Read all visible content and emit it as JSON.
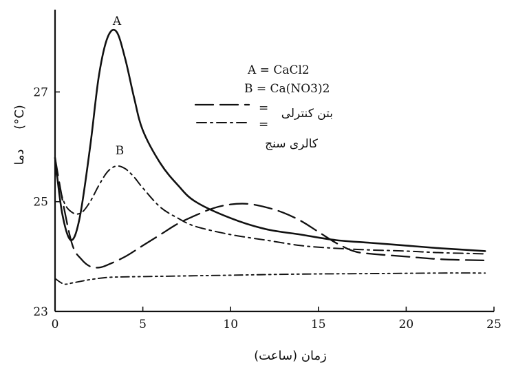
{
  "chart_data": {
    "type": "line",
    "title": "",
    "xlabel": "زمان (ساعت)",
    "ylabel": "دما",
    "ylabel_unit": "(°C)",
    "xlim": [
      0,
      25
    ],
    "ylim": [
      23,
      28.5
    ],
    "xticks": [
      0,
      5,
      10,
      15,
      20,
      25
    ],
    "yticks": [
      23,
      25,
      27
    ],
    "grid": false,
    "legend_placement": "top-right",
    "annotations": [
      {
        "text": "A",
        "x": 3.5,
        "y": 28.2
      },
      {
        "text": "B",
        "x": 3.7,
        "y": 25.8
      }
    ],
    "legend": {
      "formula_a": "A = CaCl2",
      "formula_b": "B = Ca(NO3)2",
      "entries": [
        {
          "sym": "=",
          "label": "بتن کنترلی"
        },
        {
          "sym": "=",
          "label": "کالری سنج"
        }
      ]
    },
    "series": [
      {
        "style": "solid",
        "x": [
          0,
          0.4,
          0.9,
          1.4,
          2,
          2.5,
          3,
          3.5,
          4,
          4.5,
          5,
          6,
          7,
          8,
          10,
          12,
          14,
          16,
          18,
          20,
          22,
          24.5
        ],
        "y": [
          25.8,
          24.8,
          24.3,
          24.7,
          26.0,
          27.3,
          28.0,
          28.1,
          27.6,
          26.9,
          26.3,
          25.7,
          25.3,
          25.0,
          24.7,
          24.5,
          24.4,
          24.3,
          24.25,
          24.2,
          24.15,
          24.1
        ]
      },
      {
        "style": "dash",
        "x": [
          0,
          0.5,
          1,
          1.5,
          2,
          2.5,
          3,
          4,
          5,
          6,
          7,
          8,
          9,
          10,
          11,
          12,
          13,
          14,
          15,
          16,
          17,
          18,
          20,
          22,
          24.5
        ],
        "y": [
          25.8,
          24.9,
          24.2,
          23.95,
          23.82,
          23.8,
          23.85,
          24.0,
          24.2,
          24.4,
          24.6,
          24.75,
          24.88,
          24.95,
          24.96,
          24.9,
          24.8,
          24.65,
          24.45,
          24.25,
          24.1,
          24.05,
          24.0,
          23.95,
          23.93
        ]
      },
      {
        "style": "dashdot",
        "x": [
          0,
          0.5,
          1,
          1.5,
          2,
          2.5,
          3,
          3.5,
          4,
          4.5,
          5,
          6,
          7,
          8,
          10,
          12,
          14,
          16,
          18,
          20,
          22,
          24.5
        ],
        "y": [
          25.6,
          25.0,
          24.8,
          24.8,
          25.0,
          25.3,
          25.55,
          25.65,
          25.6,
          25.45,
          25.25,
          24.9,
          24.7,
          24.55,
          24.4,
          24.3,
          24.2,
          24.15,
          24.12,
          24.1,
          24.07,
          24.05
        ]
      },
      {
        "style": "dashdotdot",
        "x": [
          0,
          0.5,
          1,
          2,
          3,
          4,
          6,
          8,
          10,
          14,
          18,
          22,
          24.5
        ],
        "y": [
          23.6,
          23.5,
          23.52,
          23.58,
          23.62,
          23.63,
          23.64,
          23.65,
          23.66,
          23.68,
          23.69,
          23.7,
          23.7
        ]
      }
    ]
  }
}
